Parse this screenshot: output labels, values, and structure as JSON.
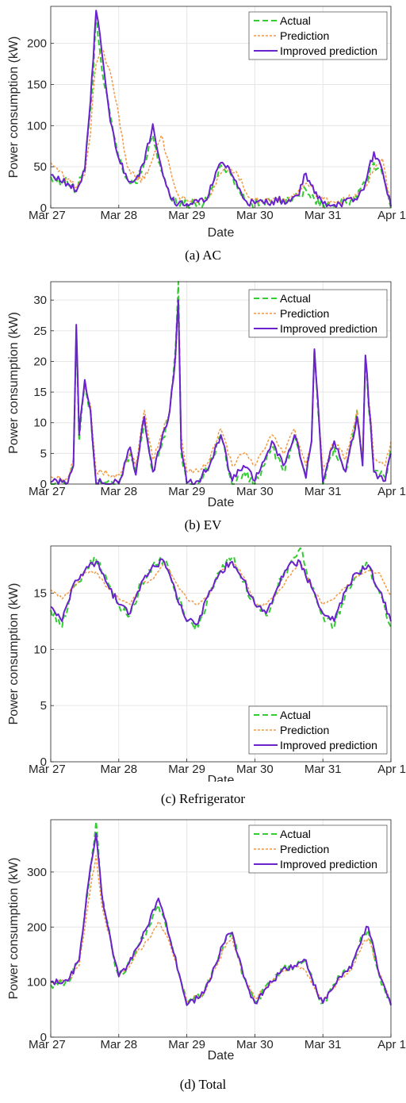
{
  "legend_labels": [
    "Actual",
    "Prediction",
    "Improved prediction"
  ],
  "colors": {
    "actual": "#33cc33",
    "prediction": "#f29944",
    "improved": "#6a22cc",
    "grid": "#e6e6e6",
    "axis": "#262626"
  },
  "chart_data": [
    {
      "type": "line",
      "caption": "(a) AC",
      "xlabel": "Date",
      "ylabel": "Power consumption (kW)",
      "x_ticks": [
        "Mar 27",
        "Mar 28",
        "Mar 29",
        "Mar 30",
        "Mar 31",
        "Apr 1"
      ],
      "x_range": [
        "2023-03-27",
        "2023-04-01"
      ],
      "y_ticks": [
        0,
        50,
        100,
        150,
        200
      ],
      "ylim": [
        0,
        245
      ],
      "grid": true,
      "legend_position": "top-right",
      "x": [
        "03-27 00:00",
        "03-27 06:00",
        "03-27 09:00",
        "03-27 12:00",
        "03-27 14:00",
        "03-27 15:00",
        "03-27 16:00",
        "03-27 18:00",
        "03-27 21:00",
        "03-28 00:00",
        "03-28 03:00",
        "03-28 06:00",
        "03-28 09:00",
        "03-28 12:00",
        "03-28 15:00",
        "03-28 18:00",
        "03-28 21:00",
        "03-29 00:00",
        "03-29 06:00",
        "03-29 09:00",
        "03-29 12:00",
        "03-29 15:00",
        "03-29 18:00",
        "03-29 21:00",
        "03-30 00:00",
        "03-30 06:00",
        "03-30 12:00",
        "03-30 15:00",
        "03-30 18:00",
        "03-30 21:00",
        "03-31 00:00",
        "03-31 06:00",
        "03-31 12:00",
        "03-31 15:00",
        "03-31 18:00",
        "03-31 21:00",
        "04-01 00:00"
      ],
      "series": [
        {
          "name": "Actual",
          "values": [
            38,
            30,
            22,
            48,
            120,
            160,
            235,
            170,
            112,
            62,
            35,
            30,
            55,
            88,
            45,
            15,
            5,
            5,
            6,
            25,
            52,
            45,
            22,
            8,
            5,
            8,
            10,
            15,
            22,
            10,
            5,
            5,
            12,
            30,
            55,
            40,
            0
          ]
        },
        {
          "name": "Prediction",
          "values": [
            55,
            35,
            25,
            40,
            90,
            140,
            175,
            193,
            165,
            112,
            50,
            35,
            35,
            60,
            88,
            50,
            15,
            10,
            10,
            20,
            42,
            50,
            40,
            18,
            10,
            10,
            12,
            18,
            30,
            20,
            10,
            8,
            15,
            25,
            48,
            60,
            5
          ]
        },
        {
          "name": "Improved prediction",
          "values": [
            40,
            30,
            20,
            45,
            130,
            180,
            240,
            190,
            105,
            60,
            35,
            35,
            55,
            102,
            50,
            15,
            5,
            5,
            7,
            28,
            55,
            48,
            25,
            8,
            5,
            8,
            10,
            15,
            42,
            18,
            5,
            5,
            10,
            30,
            68,
            45,
            2
          ]
        }
      ]
    },
    {
      "type": "line",
      "caption": "(b) EV",
      "xlabel": "Date",
      "ylabel": "Power consumption (kW)",
      "x_ticks": [
        "Mar 27",
        "Mar 28",
        "Mar 29",
        "Mar 30",
        "Mar 31",
        "Apr 1"
      ],
      "x_range": [
        "2023-03-27",
        "2023-04-01"
      ],
      "y_ticks": [
        0,
        5,
        10,
        15,
        20,
        25,
        30
      ],
      "ylim": [
        0,
        33
      ],
      "grid": true,
      "legend_position": "top-right",
      "x": [
        "03-27 00:00",
        "03-27 06:00",
        "03-27 08:00",
        "03-27 09:00",
        "03-27 10:00",
        "03-27 12:00",
        "03-27 14:00",
        "03-27 16:00",
        "03-27 18:00",
        "03-27 22:00",
        "03-28 00:00",
        "03-28 04:00",
        "03-28 06:00",
        "03-28 09:00",
        "03-28 12:00",
        "03-28 15:00",
        "03-28 18:00",
        "03-28 20:00",
        "03-28 21:00",
        "03-28 22:00",
        "03-29 00:00",
        "03-29 04:00",
        "03-29 08:00",
        "03-29 12:00",
        "03-29 16:00",
        "03-29 20:00",
        "03-30 00:00",
        "03-30 06:00",
        "03-30 10:00",
        "03-30 14:00",
        "03-30 18:00",
        "03-30 20:00",
        "03-30 21:00",
        "03-31 00:00",
        "03-31 04:00",
        "03-31 08:00",
        "03-31 12:00",
        "03-31 14:00",
        "03-31 15:00",
        "03-31 18:00",
        "03-31 22:00",
        "04-01 00:00"
      ],
      "series": [
        {
          "name": "Actual",
          "values": [
            0,
            0.5,
            3,
            25,
            7,
            16,
            12,
            0,
            0,
            0,
            0,
            5,
            2,
            10,
            2,
            6,
            12,
            22,
            33,
            5,
            0,
            0,
            3,
            8,
            0,
            2,
            0,
            6,
            2,
            8,
            1,
            7,
            22,
            0,
            6,
            2,
            12,
            3,
            20,
            2,
            1,
            6
          ]
        },
        {
          "name": "Prediction",
          "values": [
            1.2,
            1,
            4,
            24,
            9,
            16,
            13,
            2,
            2,
            1.5,
            1.5,
            5,
            3,
            12,
            4,
            8,
            12,
            20,
            30,
            8,
            2,
            2,
            4,
            9,
            3,
            5,
            3,
            8,
            5,
            9,
            3,
            7,
            21,
            2,
            7,
            4,
            12,
            4,
            21,
            4,
            3,
            7
          ]
        },
        {
          "name": "Improved prediction",
          "values": [
            0.3,
            0.2,
            3,
            26,
            8,
            17,
            12,
            0.2,
            0.2,
            0.1,
            0.1,
            6,
            1.5,
            11,
            2,
            7,
            12,
            21,
            30,
            6,
            0.2,
            0.5,
            3,
            8,
            0.5,
            3,
            0.5,
            7,
            3,
            8,
            1,
            7,
            22,
            0.3,
            7,
            2,
            11,
            3,
            21,
            2,
            0.5,
            5
          ]
        }
      ]
    },
    {
      "type": "line",
      "caption": "(c) Refrigerator",
      "xlabel": "Date",
      "ylabel": "Power consumption (kW)",
      "x_ticks": [
        "Mar 27",
        "Mar 28",
        "Mar 29",
        "Mar 30",
        "Mar 31",
        "Apr 1"
      ],
      "x_range": [
        "2023-03-27",
        "2023-04-01"
      ],
      "y_ticks": [
        0,
        5,
        10,
        15
      ],
      "ylim": [
        0,
        19.2
      ],
      "grid": true,
      "legend_position": "bottom-right",
      "x": [
        "03-27 00:00",
        "03-27 04:00",
        "03-27 08:00",
        "03-27 12:00",
        "03-27 16:00",
        "03-27 20:00",
        "03-28 00:00",
        "03-28 04:00",
        "03-28 08:00",
        "03-28 12:00",
        "03-28 16:00",
        "03-28 20:00",
        "03-29 00:00",
        "03-29 04:00",
        "03-29 08:00",
        "03-29 12:00",
        "03-29 16:00",
        "03-29 20:00",
        "03-30 00:00",
        "03-30 04:00",
        "03-30 08:00",
        "03-30 12:00",
        "03-30 16:00",
        "03-30 20:00",
        "03-31 00:00",
        "03-31 04:00",
        "03-31 08:00",
        "03-31 12:00",
        "03-31 16:00",
        "03-31 20:00",
        "04-01 00:00"
      ],
      "series": [
        {
          "name": "Actual",
          "values": [
            13.5,
            12,
            15.5,
            17,
            18,
            16,
            14,
            13,
            16,
            17.5,
            18,
            15,
            12.5,
            12,
            15,
            17,
            18.2,
            16,
            14,
            13,
            15.5,
            17.5,
            19,
            15.5,
            13,
            12,
            15,
            16.5,
            17.5,
            15,
            12
          ]
        },
        {
          "name": "Prediction",
          "values": [
            15.3,
            14.5,
            15.5,
            16.8,
            16.9,
            15.5,
            14.5,
            14,
            15.8,
            16.2,
            17.8,
            16,
            14.5,
            14,
            15,
            17,
            17.8,
            16.5,
            14,
            14,
            15,
            16.5,
            17.8,
            15.5,
            14,
            14.5,
            15.5,
            16.5,
            17,
            16.8,
            14.8
          ]
        },
        {
          "name": "Improved prediction",
          "values": [
            13.8,
            12.5,
            15.8,
            17,
            17.8,
            15.8,
            14,
            13.2,
            16,
            17.5,
            17.8,
            15.2,
            12.5,
            12.3,
            15.2,
            17,
            17.8,
            16.2,
            14,
            13.2,
            15.5,
            17.5,
            17.8,
            15.5,
            13.2,
            12.5,
            15.2,
            16.8,
            17.5,
            15.2,
            12.5
          ]
        }
      ]
    },
    {
      "type": "line",
      "caption": "(d) Total",
      "xlabel": "Date",
      "ylabel": "Power consumption (kW)",
      "x_ticks": [
        "Mar 27",
        "Mar 28",
        "Mar 29",
        "Mar 30",
        "Mar 31",
        "Apr 1"
      ],
      "x_range": [
        "2023-03-27",
        "2023-04-01"
      ],
      "y_ticks": [
        0,
        100,
        200,
        300
      ],
      "ylim": [
        0,
        395
      ],
      "grid": true,
      "legend_position": "top-right",
      "x": [
        "03-27 00:00",
        "03-27 06:00",
        "03-27 10:00",
        "03-27 14:00",
        "03-27 16:00",
        "03-27 18:00",
        "03-27 22:00",
        "03-28 00:00",
        "03-28 03:00",
        "03-28 06:00",
        "03-28 10:00",
        "03-28 14:00",
        "03-28 18:00",
        "03-28 22:00",
        "03-29 00:00",
        "03-29 06:00",
        "03-29 10:00",
        "03-29 14:00",
        "03-29 16:00",
        "03-29 20:00",
        "03-30 00:00",
        "03-30 06:00",
        "03-30 10:00",
        "03-30 14:00",
        "03-30 18:00",
        "03-30 22:00",
        "03-31 00:00",
        "03-31 06:00",
        "03-31 10:00",
        "03-31 14:00",
        "03-31 16:00",
        "03-31 20:00",
        "04-01 00:00"
      ],
      "series": [
        {
          "name": "Actual",
          "values": [
            95,
            100,
            140,
            300,
            392,
            260,
            150,
            110,
            130,
            155,
            195,
            240,
            180,
            100,
            60,
            80,
            130,
            180,
            190,
            110,
            65,
            100,
            125,
            130,
            140,
            80,
            62,
            110,
            125,
            185,
            195,
            110,
            60
          ]
        },
        {
          "name": "Prediction",
          "values": [
            100,
            102,
            130,
            270,
            330,
            240,
            155,
            115,
            125,
            150,
            175,
            210,
            170,
            100,
            65,
            80,
            125,
            170,
            180,
            110,
            70,
            100,
            120,
            130,
            120,
            80,
            65,
            105,
            120,
            170,
            180,
            115,
            62
          ]
        },
        {
          "name": "Improved prediction",
          "values": [
            100,
            102,
            140,
            310,
            370,
            260,
            150,
            110,
            130,
            160,
            200,
            252,
            180,
            100,
            58,
            80,
            130,
            185,
            190,
            110,
            62,
            100,
            125,
            130,
            140,
            80,
            62,
            110,
            125,
            185,
            200,
            112,
            58
          ]
        }
      ]
    }
  ]
}
